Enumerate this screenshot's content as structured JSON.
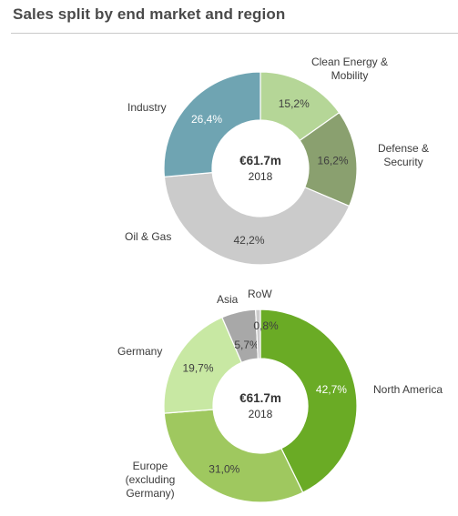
{
  "title": "Sales split by end market and region",
  "chart_data": [
    {
      "type": "pie",
      "variant": "donut",
      "center": {
        "value": "€61.7m",
        "year": "2018"
      },
      "slices": [
        {
          "name": "Clean Energy & Mobility",
          "label_lines": [
            "Clean Energy &",
            "Mobility"
          ],
          "value": 15.2,
          "value_label": "15,2%",
          "color": "#b5d697"
        },
        {
          "name": "Defense & Security",
          "label_lines": [
            "Defense &",
            "Security"
          ],
          "value": 16.2,
          "value_label": "16,2%",
          "color": "#8aa06f"
        },
        {
          "name": "Oil & Gas",
          "label_lines": [
            "Oil & Gas"
          ],
          "value": 42.2,
          "value_label": "42,2%",
          "color": "#cbcbcb"
        },
        {
          "name": "Industry",
          "label_lines": [
            "Industry"
          ],
          "value": 26.4,
          "value_label": "26,4%",
          "color": "#6fa4b2"
        }
      ]
    },
    {
      "type": "pie",
      "variant": "donut",
      "center": {
        "value": "€61.7m",
        "year": "2018"
      },
      "slices": [
        {
          "name": "North America",
          "label_lines": [
            "North America"
          ],
          "value": 42.7,
          "value_label": "42,7%",
          "color": "#6aab25"
        },
        {
          "name": "Europe (excluding Germany)",
          "label_lines": [
            "Europe",
            "(excluding",
            "Germany)"
          ],
          "value": 31.0,
          "value_label": "31,0%",
          "color": "#9fc85f"
        },
        {
          "name": "Germany",
          "label_lines": [
            "Germany"
          ],
          "value": 19.7,
          "value_label": "19,7%",
          "color": "#c8e8a3"
        },
        {
          "name": "Asia",
          "label_lines": [
            "Asia"
          ],
          "value": 5.7,
          "value_label": "5,7%",
          "color": "#a8a8a8"
        },
        {
          "name": "RoW",
          "label_lines": [
            "RoW"
          ],
          "value": 0.8,
          "value_label": "0,8%",
          "color": "#cccccc"
        }
      ]
    }
  ]
}
